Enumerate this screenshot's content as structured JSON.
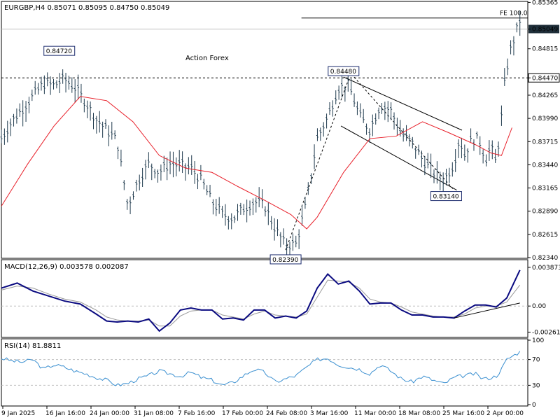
{
  "colors": {
    "price": "#1f3a4d",
    "ma": "#e8202a",
    "macd": "#0a0a80",
    "signal": "#999999",
    "rsi": "#3a8fd0",
    "grid": "#bfbfbf",
    "watermark": "#b8b8b8"
  },
  "chart_data": [
    {
      "type": "line",
      "panel": "price",
      "title": "EURGBP,H4  0.85071 0.85095 0.84750 0.85049",
      "watermark": "Action Forex",
      "ylim": [
        0.8234,
        0.8536
      ],
      "y_ticks": [
        "0.85365",
        "0.85049",
        "0.84815",
        "0.84470",
        "0.84265",
        "0.83990",
        "0.83715",
        "0.83440",
        "0.83165",
        "0.82890",
        "0.82615",
        "0.82340"
      ],
      "x_tick_labels": [
        "9 Jan 2025",
        "16 Jan 16:00",
        "24 Jan 00:00",
        "31 Jan 08:00",
        "7 Feb 16:00",
        "17 Feb 00:00",
        "24 Feb 08:00",
        "3 Mar 16:00",
        "11 Mar 00:00",
        "18 Mar 08:00",
        "25 Mar 16:00",
        "2 Apr 00:00"
      ],
      "current_price": "0.85049",
      "level_line": "0.84470",
      "fe_label": "FE 100.0",
      "fe_level": 0.8518,
      "annotations": [
        {
          "text": "0.84720",
          "x": 0.11,
          "y": 0.8472
        },
        {
          "text": "0.84480",
          "x": 0.65,
          "y": 0.8448
        },
        {
          "text": "0.82390",
          "x": 0.54,
          "y": 0.8239
        },
        {
          "text": "0.83140",
          "x": 0.845,
          "y": 0.8314
        }
      ],
      "series": [
        {
          "role": "price",
          "x": [
            0,
            0.02,
            0.04,
            0.06,
            0.08,
            0.1,
            0.12,
            0.14,
            0.16,
            0.18,
            0.2,
            0.22,
            0.24,
            0.26,
            0.28,
            0.3,
            0.32,
            0.34,
            0.36,
            0.38,
            0.4,
            0.42,
            0.44,
            0.46,
            0.48,
            0.5,
            0.52,
            0.54,
            0.56,
            0.58,
            0.6,
            0.62,
            0.64,
            0.66,
            0.68,
            0.7,
            0.72,
            0.74,
            0.76,
            0.78,
            0.8,
            0.82,
            0.84,
            0.86,
            0.87,
            0.88,
            0.89,
            0.9,
            0.91,
            0.92,
            0.93,
            0.94,
            0.95,
            0.955,
            0.96,
            0.965,
            0.975,
            0.985
          ],
          "values": [
            0.8375,
            0.8395,
            0.841,
            0.8425,
            0.844,
            0.8438,
            0.8445,
            0.8435,
            0.8418,
            0.8398,
            0.8385,
            0.8372,
            0.8295,
            0.8325,
            0.8345,
            0.8335,
            0.8345,
            0.8343,
            0.834,
            0.8325,
            0.83,
            0.8285,
            0.828,
            0.8292,
            0.83,
            0.8295,
            0.8268,
            0.8248,
            0.825,
            0.83,
            0.8375,
            0.84,
            0.8435,
            0.8438,
            0.8402,
            0.8385,
            0.8415,
            0.8408,
            0.838,
            0.837,
            0.835,
            0.8335,
            0.8325,
            0.8345,
            0.8375,
            0.8355,
            0.837,
            0.8375,
            0.837,
            0.835,
            0.8365,
            0.8345,
            0.84,
            0.8435,
            0.8455,
            0.8475,
            0.8495,
            0.8515
          ]
        },
        {
          "role": "moving-average",
          "x": [
            0,
            0.05,
            0.1,
            0.15,
            0.2,
            0.25,
            0.3,
            0.35,
            0.4,
            0.45,
            0.5,
            0.55,
            0.58,
            0.6,
            0.65,
            0.7,
            0.75,
            0.8,
            0.85,
            0.9,
            0.93,
            0.95,
            0.97
          ],
          "values": [
            0.8295,
            0.8345,
            0.839,
            0.8425,
            0.842,
            0.8395,
            0.8355,
            0.834,
            0.8335,
            0.8318,
            0.8302,
            0.8285,
            0.8268,
            0.8282,
            0.8335,
            0.8375,
            0.8378,
            0.8395,
            0.8382,
            0.8368,
            0.8358,
            0.8355,
            0.8388
          ]
        }
      ],
      "trendlines": [
        {
          "x": [
            0.54,
            0.66
          ],
          "y": [
            0.8243,
            0.8446
          ],
          "style": "dashed"
        },
        {
          "x": [
            0.65,
            0.875
          ],
          "y": [
            0.8448,
            0.8385
          ],
          "style": "solid"
        },
        {
          "x": [
            0.645,
            0.865
          ],
          "y": [
            0.839,
            0.8314
          ],
          "style": "solid"
        },
        {
          "x": [
            0.67,
            0.86
          ],
          "y": [
            0.8448,
            0.8314
          ],
          "style": "dashed"
        }
      ]
    },
    {
      "type": "line",
      "panel": "macd",
      "title": "MACD(12,26,9) 0.003578 0.002087",
      "ylim": [
        -0.003,
        0.0045
      ],
      "y_ticks": [
        "0.003873",
        "0.00",
        "-0.002612"
      ],
      "series": [
        {
          "role": "macd",
          "x": [
            0,
            0.03,
            0.06,
            0.09,
            0.12,
            0.15,
            0.18,
            0.2,
            0.22,
            0.24,
            0.26,
            0.28,
            0.3,
            0.32,
            0.34,
            0.36,
            0.38,
            0.4,
            0.42,
            0.44,
            0.46,
            0.48,
            0.5,
            0.52,
            0.54,
            0.56,
            0.58,
            0.6,
            0.62,
            0.64,
            0.66,
            0.68,
            0.7,
            0.72,
            0.74,
            0.76,
            0.78,
            0.8,
            0.82,
            0.84,
            0.86,
            0.88,
            0.9,
            0.92,
            0.94,
            0.96,
            0.985
          ],
          "values": [
            0.0018,
            0.0023,
            0.0015,
            0.001,
            0.0005,
            0.0002,
            -0.0008,
            -0.0015,
            -0.0016,
            -0.0015,
            -0.0016,
            -0.0013,
            -0.0025,
            -0.0017,
            -0.0004,
            -0.0002,
            -0.0004,
            -0.0004,
            -0.0013,
            -0.0012,
            -0.0014,
            -0.0004,
            -0.0004,
            -0.0012,
            -0.001,
            -0.0012,
            -0.0005,
            0.0018,
            0.0032,
            0.0022,
            0.0025,
            0.0015,
            0.0002,
            0.0003,
            0.0003,
            -0.0004,
            -0.0009,
            -0.0009,
            -0.0011,
            -0.0011,
            -0.0012,
            -0.0005,
            0.0001,
            0.0001,
            -0.0001,
            0.0008,
            0.0036
          ]
        },
        {
          "role": "signal",
          "x": [
            0,
            0.03,
            0.06,
            0.09,
            0.12,
            0.15,
            0.18,
            0.2,
            0.22,
            0.24,
            0.26,
            0.28,
            0.3,
            0.32,
            0.34,
            0.36,
            0.38,
            0.4,
            0.42,
            0.44,
            0.46,
            0.48,
            0.5,
            0.52,
            0.54,
            0.56,
            0.58,
            0.6,
            0.62,
            0.64,
            0.66,
            0.68,
            0.7,
            0.72,
            0.74,
            0.76,
            0.78,
            0.8,
            0.82,
            0.84,
            0.86,
            0.88,
            0.9,
            0.92,
            0.94,
            0.96,
            0.985
          ],
          "values": [
            0.0016,
            0.002,
            0.0018,
            0.0012,
            0.0007,
            0.0004,
            -0.0004,
            -0.0011,
            -0.0014,
            -0.0015,
            -0.0015,
            -0.0014,
            -0.002,
            -0.002,
            -0.001,
            -0.0005,
            -0.0004,
            -0.0004,
            -0.0009,
            -0.0011,
            -0.0013,
            -0.0008,
            -0.0005,
            -0.0009,
            -0.001,
            -0.0011,
            -0.0008,
            0.0009,
            0.0026,
            0.0025,
            0.0024,
            0.0018,
            0.0007,
            0.0004,
            0.0003,
            -0.0001,
            -0.0006,
            -0.0008,
            -0.001,
            -0.0011,
            -0.0011,
            -0.0008,
            -0.0002,
            0.0,
            0.0,
            0.0004,
            0.0021
          ]
        }
      ],
      "trendline": {
        "x": [
          0.86,
          0.985
        ],
        "y": [
          -0.0012,
          0.0003
        ]
      }
    },
    {
      "type": "line",
      "panel": "rsi",
      "title": "RSI(14) 81.8811",
      "ylim": [
        0,
        100
      ],
      "y_ticks": [
        "100",
        "70",
        "30",
        "0"
      ],
      "reference_lines": [
        70,
        30
      ],
      "series": [
        {
          "role": "rsi",
          "x": [
            0,
            0.02,
            0.04,
            0.06,
            0.08,
            0.1,
            0.12,
            0.14,
            0.16,
            0.18,
            0.2,
            0.22,
            0.24,
            0.26,
            0.28,
            0.3,
            0.32,
            0.34,
            0.36,
            0.38,
            0.4,
            0.42,
            0.44,
            0.46,
            0.48,
            0.5,
            0.52,
            0.54,
            0.56,
            0.58,
            0.6,
            0.62,
            0.64,
            0.66,
            0.68,
            0.7,
            0.72,
            0.74,
            0.76,
            0.78,
            0.8,
            0.82,
            0.84,
            0.86,
            0.88,
            0.9,
            0.91,
            0.92,
            0.94,
            0.95,
            0.96,
            0.97,
            0.985
          ],
          "values": [
            72,
            68,
            66,
            70,
            55,
            62,
            58,
            52,
            48,
            42,
            38,
            30,
            33,
            40,
            45,
            52,
            48,
            44,
            50,
            42,
            38,
            30,
            34,
            45,
            55,
            50,
            35,
            40,
            45,
            58,
            70,
            72,
            62,
            58,
            55,
            48,
            62,
            52,
            40,
            35,
            44,
            38,
            32,
            42,
            45,
            48,
            42,
            40,
            44,
            55,
            70,
            75,
            82
          ]
        }
      ]
    }
  ]
}
